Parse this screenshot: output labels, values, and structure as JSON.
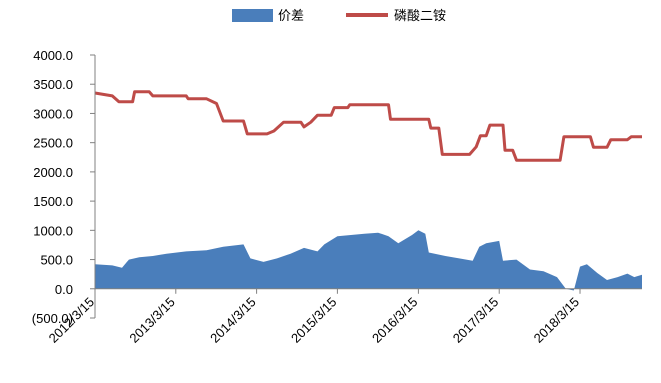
{
  "chart_data": {
    "type": "area+line",
    "title": "",
    "xlabel": "",
    "ylabel": "",
    "ylim": [
      -500,
      4000
    ],
    "y_ticks": [
      "4000.0",
      "3500.0",
      "3000.0",
      "2500.0",
      "2000.0",
      "1500.0",
      "1000.0",
      "500.0",
      "0.0",
      "(500.0)"
    ],
    "y_tick_values": [
      4000,
      3500,
      3000,
      2500,
      2000,
      1500,
      1000,
      500,
      0,
      -500
    ],
    "negative_tick_color": "#c00000",
    "x_range": [
      "2012-03-15",
      "2018-12-20"
    ],
    "x_ticks": [
      "2012/3/15",
      "2013/3/15",
      "2014/3/15",
      "2015/3/15",
      "2016/3/15",
      "2017/3/15",
      "2018/3/15"
    ],
    "x_tick_dates": [
      "2012-03-15",
      "2013-03-15",
      "2014-03-15",
      "2015-03-15",
      "2016-03-15",
      "2017-03-15",
      "2018-03-15"
    ],
    "legend_position": "top-center",
    "grid": false,
    "series": [
      {
        "name": "价差",
        "type": "area",
        "color": "#4a7ebb",
        "points": [
          [
            "2012-03-15",
            420
          ],
          [
            "2012-06-01",
            400
          ],
          [
            "2012-07-15",
            360
          ],
          [
            "2012-08-15",
            500
          ],
          [
            "2012-10-01",
            540
          ],
          [
            "2012-12-01",
            560
          ],
          [
            "2013-02-01",
            600
          ],
          [
            "2013-05-01",
            640
          ],
          [
            "2013-08-01",
            660
          ],
          [
            "2013-10-15",
            720
          ],
          [
            "2014-01-15",
            760
          ],
          [
            "2014-02-15",
            520
          ],
          [
            "2014-04-15",
            460
          ],
          [
            "2014-06-15",
            520
          ],
          [
            "2014-08-15",
            600
          ],
          [
            "2014-10-15",
            700
          ],
          [
            "2014-12-15",
            640
          ],
          [
            "2015-01-15",
            760
          ],
          [
            "2015-03-15",
            900
          ],
          [
            "2015-05-15",
            920
          ],
          [
            "2015-07-15",
            940
          ],
          [
            "2015-09-15",
            960
          ],
          [
            "2015-11-01",
            900
          ],
          [
            "2015-12-15",
            780
          ],
          [
            "2016-02-15",
            920
          ],
          [
            "2016-03-15",
            1000
          ],
          [
            "2016-04-15",
            940
          ],
          [
            "2016-05-01",
            620
          ],
          [
            "2016-07-15",
            560
          ],
          [
            "2016-09-15",
            520
          ],
          [
            "2016-11-15",
            480
          ],
          [
            "2016-12-15",
            720
          ],
          [
            "2017-01-15",
            780
          ],
          [
            "2017-03-15",
            820
          ],
          [
            "2017-04-01",
            480
          ],
          [
            "2017-06-01",
            500
          ],
          [
            "2017-08-01",
            330
          ],
          [
            "2017-10-01",
            300
          ],
          [
            "2017-12-01",
            200
          ],
          [
            "2018-01-10",
            0
          ],
          [
            "2018-02-15",
            -30
          ],
          [
            "2018-03-15",
            380
          ],
          [
            "2018-04-15",
            420
          ],
          [
            "2018-06-01",
            270
          ],
          [
            "2018-07-15",
            150
          ],
          [
            "2018-09-01",
            200
          ],
          [
            "2018-10-15",
            260
          ],
          [
            "2018-11-15",
            200
          ],
          [
            "2018-12-20",
            240
          ]
        ]
      },
      {
        "name": "磷酸二铵",
        "type": "line",
        "color": "#be4b48",
        "points": [
          [
            "2012-03-15",
            3350
          ],
          [
            "2012-06-01",
            3300
          ],
          [
            "2012-07-01",
            3200
          ],
          [
            "2012-09-01",
            3200
          ],
          [
            "2012-09-10",
            3370
          ],
          [
            "2012-11-15",
            3370
          ],
          [
            "2012-12-01",
            3300
          ],
          [
            "2013-05-01",
            3300
          ],
          [
            "2013-05-10",
            3250
          ],
          [
            "2013-08-01",
            3250
          ],
          [
            "2013-09-15",
            3170
          ],
          [
            "2013-10-15",
            2870
          ],
          [
            "2014-01-15",
            2870
          ],
          [
            "2014-02-01",
            2650
          ],
          [
            "2014-05-01",
            2650
          ],
          [
            "2014-06-01",
            2700
          ],
          [
            "2014-07-15",
            2850
          ],
          [
            "2014-10-01",
            2850
          ],
          [
            "2014-10-15",
            2770
          ],
          [
            "2014-11-15",
            2850
          ],
          [
            "2014-12-15",
            2970
          ],
          [
            "2015-02-15",
            2970
          ],
          [
            "2015-03-01",
            3100
          ],
          [
            "2015-05-01",
            3100
          ],
          [
            "2015-05-10",
            3150
          ],
          [
            "2015-11-01",
            3150
          ],
          [
            "2015-11-10",
            2900
          ],
          [
            "2016-05-01",
            2900
          ],
          [
            "2016-05-10",
            2750
          ],
          [
            "2016-06-15",
            2750
          ],
          [
            "2016-07-01",
            2300
          ],
          [
            "2016-11-01",
            2300
          ],
          [
            "2016-12-01",
            2430
          ],
          [
            "2016-12-20",
            2620
          ],
          [
            "2017-01-15",
            2620
          ],
          [
            "2017-02-01",
            2800
          ],
          [
            "2017-04-01",
            2800
          ],
          [
            "2017-04-10",
            2370
          ],
          [
            "2017-05-15",
            2370
          ],
          [
            "2017-06-01",
            2200
          ],
          [
            "2017-12-15",
            2200
          ],
          [
            "2018-01-01",
            2600
          ],
          [
            "2018-05-01",
            2600
          ],
          [
            "2018-05-15",
            2420
          ],
          [
            "2018-07-15",
            2420
          ],
          [
            "2018-08-01",
            2550
          ],
          [
            "2018-10-15",
            2550
          ],
          [
            "2018-11-01",
            2600
          ],
          [
            "2018-12-20",
            2600
          ]
        ]
      }
    ]
  }
}
